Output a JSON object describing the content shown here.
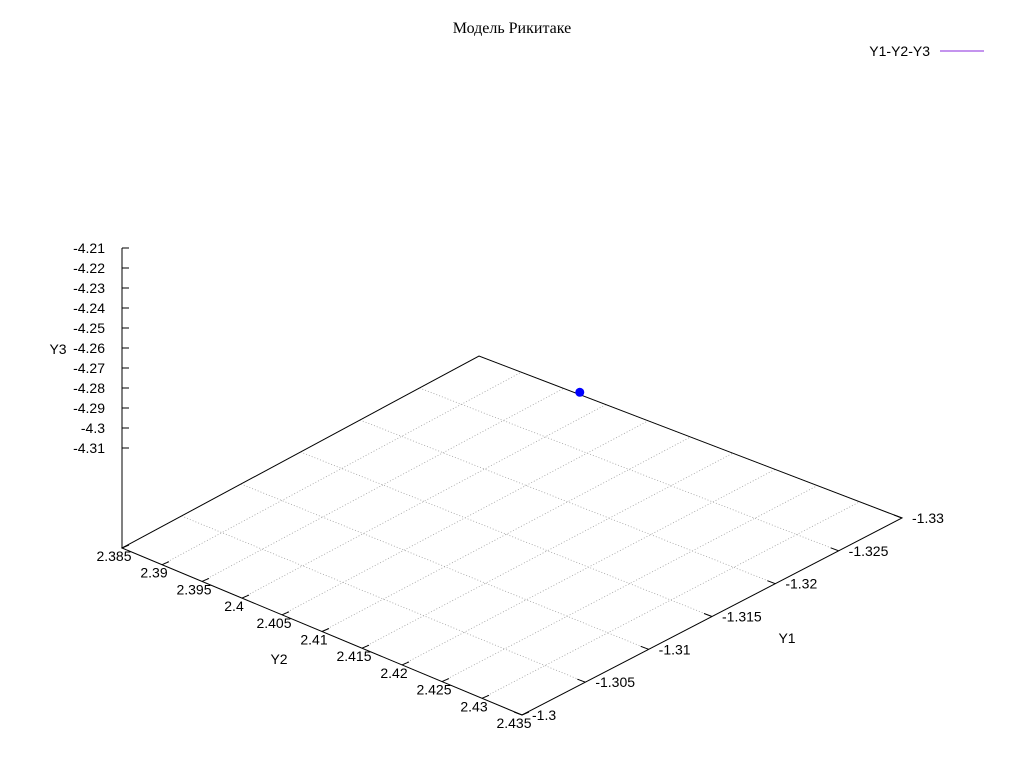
{
  "chart_data": {
    "type": "scatter",
    "title": "Модель Рикитаке",
    "legend": {
      "label": "Y1-Y2-Y3",
      "position": "top-right",
      "color": "#b070e8"
    },
    "axes": {
      "y1": {
        "label": "Y1",
        "ticks": [
          "-1.3",
          "-1.305",
          "-1.31",
          "-1.315",
          "-1.32",
          "-1.325",
          "-1.33"
        ],
        "range": [
          -1.3,
          -1.33
        ]
      },
      "y2": {
        "label": "Y2",
        "ticks": [
          "2.385",
          "2.39",
          "2.395",
          "2.4",
          "2.405",
          "2.41",
          "2.415",
          "2.42",
          "2.425",
          "2.43",
          "2.435"
        ],
        "range": [
          2.385,
          2.435
        ]
      },
      "y3": {
        "label": "Y3",
        "ticks": [
          "-4.21",
          "-4.22",
          "-4.23",
          "-4.24",
          "-4.25",
          "-4.26",
          "-4.27",
          "-4.28",
          "-4.29",
          "-4.3",
          "-4.31"
        ],
        "range": [
          -4.32,
          -4.21
        ]
      }
    },
    "grid": true,
    "points": [
      {
        "y1": -1.3195,
        "y2": 2.4122,
        "y3": -4.26,
        "color": "#0000ff"
      }
    ]
  }
}
